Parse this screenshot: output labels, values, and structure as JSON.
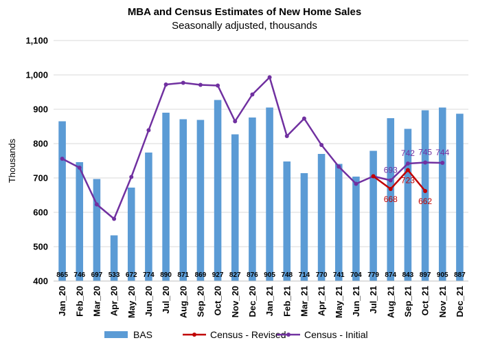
{
  "chart_data": {
    "type": "bar",
    "title": "MBA and Census Estimates of New Home Sales",
    "subtitle": "Seasonally adjusted, thousands",
    "ylabel": "Thousands",
    "xlabel": "",
    "ylim": [
      400,
      1100
    ],
    "yticks": [
      "400",
      "500",
      "600",
      "700",
      "800",
      "900",
      "1,000",
      "1,100"
    ],
    "grid": true,
    "legend_position": "bottom",
    "categories": [
      "Jan_20",
      "Feb_20",
      "Mar_20",
      "Apr_20",
      "May_20",
      "Jun_20",
      "Jul_20",
      "Aug_20",
      "Sep_20",
      "Oct_20",
      "Nov_20",
      "Dec_20",
      "Jan_21",
      "Feb_21",
      "Mar_21",
      "Apr_21",
      "May_21",
      "Jun_21",
      "Jul_21",
      "Aug_21",
      "Sep_21",
      "Oct_21",
      "Nov_21",
      "Dec_21"
    ],
    "series": [
      {
        "name": "BAS",
        "type": "bar",
        "color": "#5b9bd5",
        "values": [
          865,
          746,
          697,
          533,
          672,
          774,
          890,
          871,
          869,
          927,
          827,
          876,
          905,
          748,
          714,
          770,
          741,
          704,
          779,
          874,
          843,
          897,
          905,
          887
        ],
        "labels": [
          "865",
          "746",
          "697",
          "533",
          "672",
          "774",
          "890",
          "871",
          "869",
          "927",
          "827",
          "876",
          "905",
          "748",
          "714",
          "770",
          "741",
          "704",
          "779",
          "874",
          "843",
          "897",
          "905",
          "887"
        ]
      },
      {
        "name": "Census - Revised",
        "type": "line",
        "color": "#c00000",
        "values": [
          null,
          null,
          null,
          null,
          null,
          null,
          null,
          null,
          null,
          null,
          null,
          null,
          null,
          null,
          null,
          null,
          null,
          null,
          705,
          668,
          723,
          662,
          null,
          null
        ],
        "labels": [
          null,
          null,
          null,
          null,
          null,
          null,
          null,
          null,
          null,
          null,
          null,
          null,
          null,
          null,
          null,
          null,
          null,
          null,
          null,
          "668",
          "723",
          "662",
          null,
          null
        ]
      },
      {
        "name": "Census - Initial",
        "type": "line",
        "color": "#7030a0",
        "values": [
          756,
          730,
          623,
          581,
          703,
          839,
          972,
          977,
          971,
          969,
          865,
          943,
          993,
          822,
          873,
          796,
          733,
          683,
          705,
          693,
          742,
          745,
          744,
          null
        ],
        "labels": [
          null,
          null,
          null,
          null,
          null,
          null,
          null,
          null,
          null,
          null,
          null,
          null,
          null,
          null,
          null,
          null,
          null,
          null,
          null,
          "693",
          "742",
          "745",
          "744",
          null
        ]
      }
    ]
  }
}
